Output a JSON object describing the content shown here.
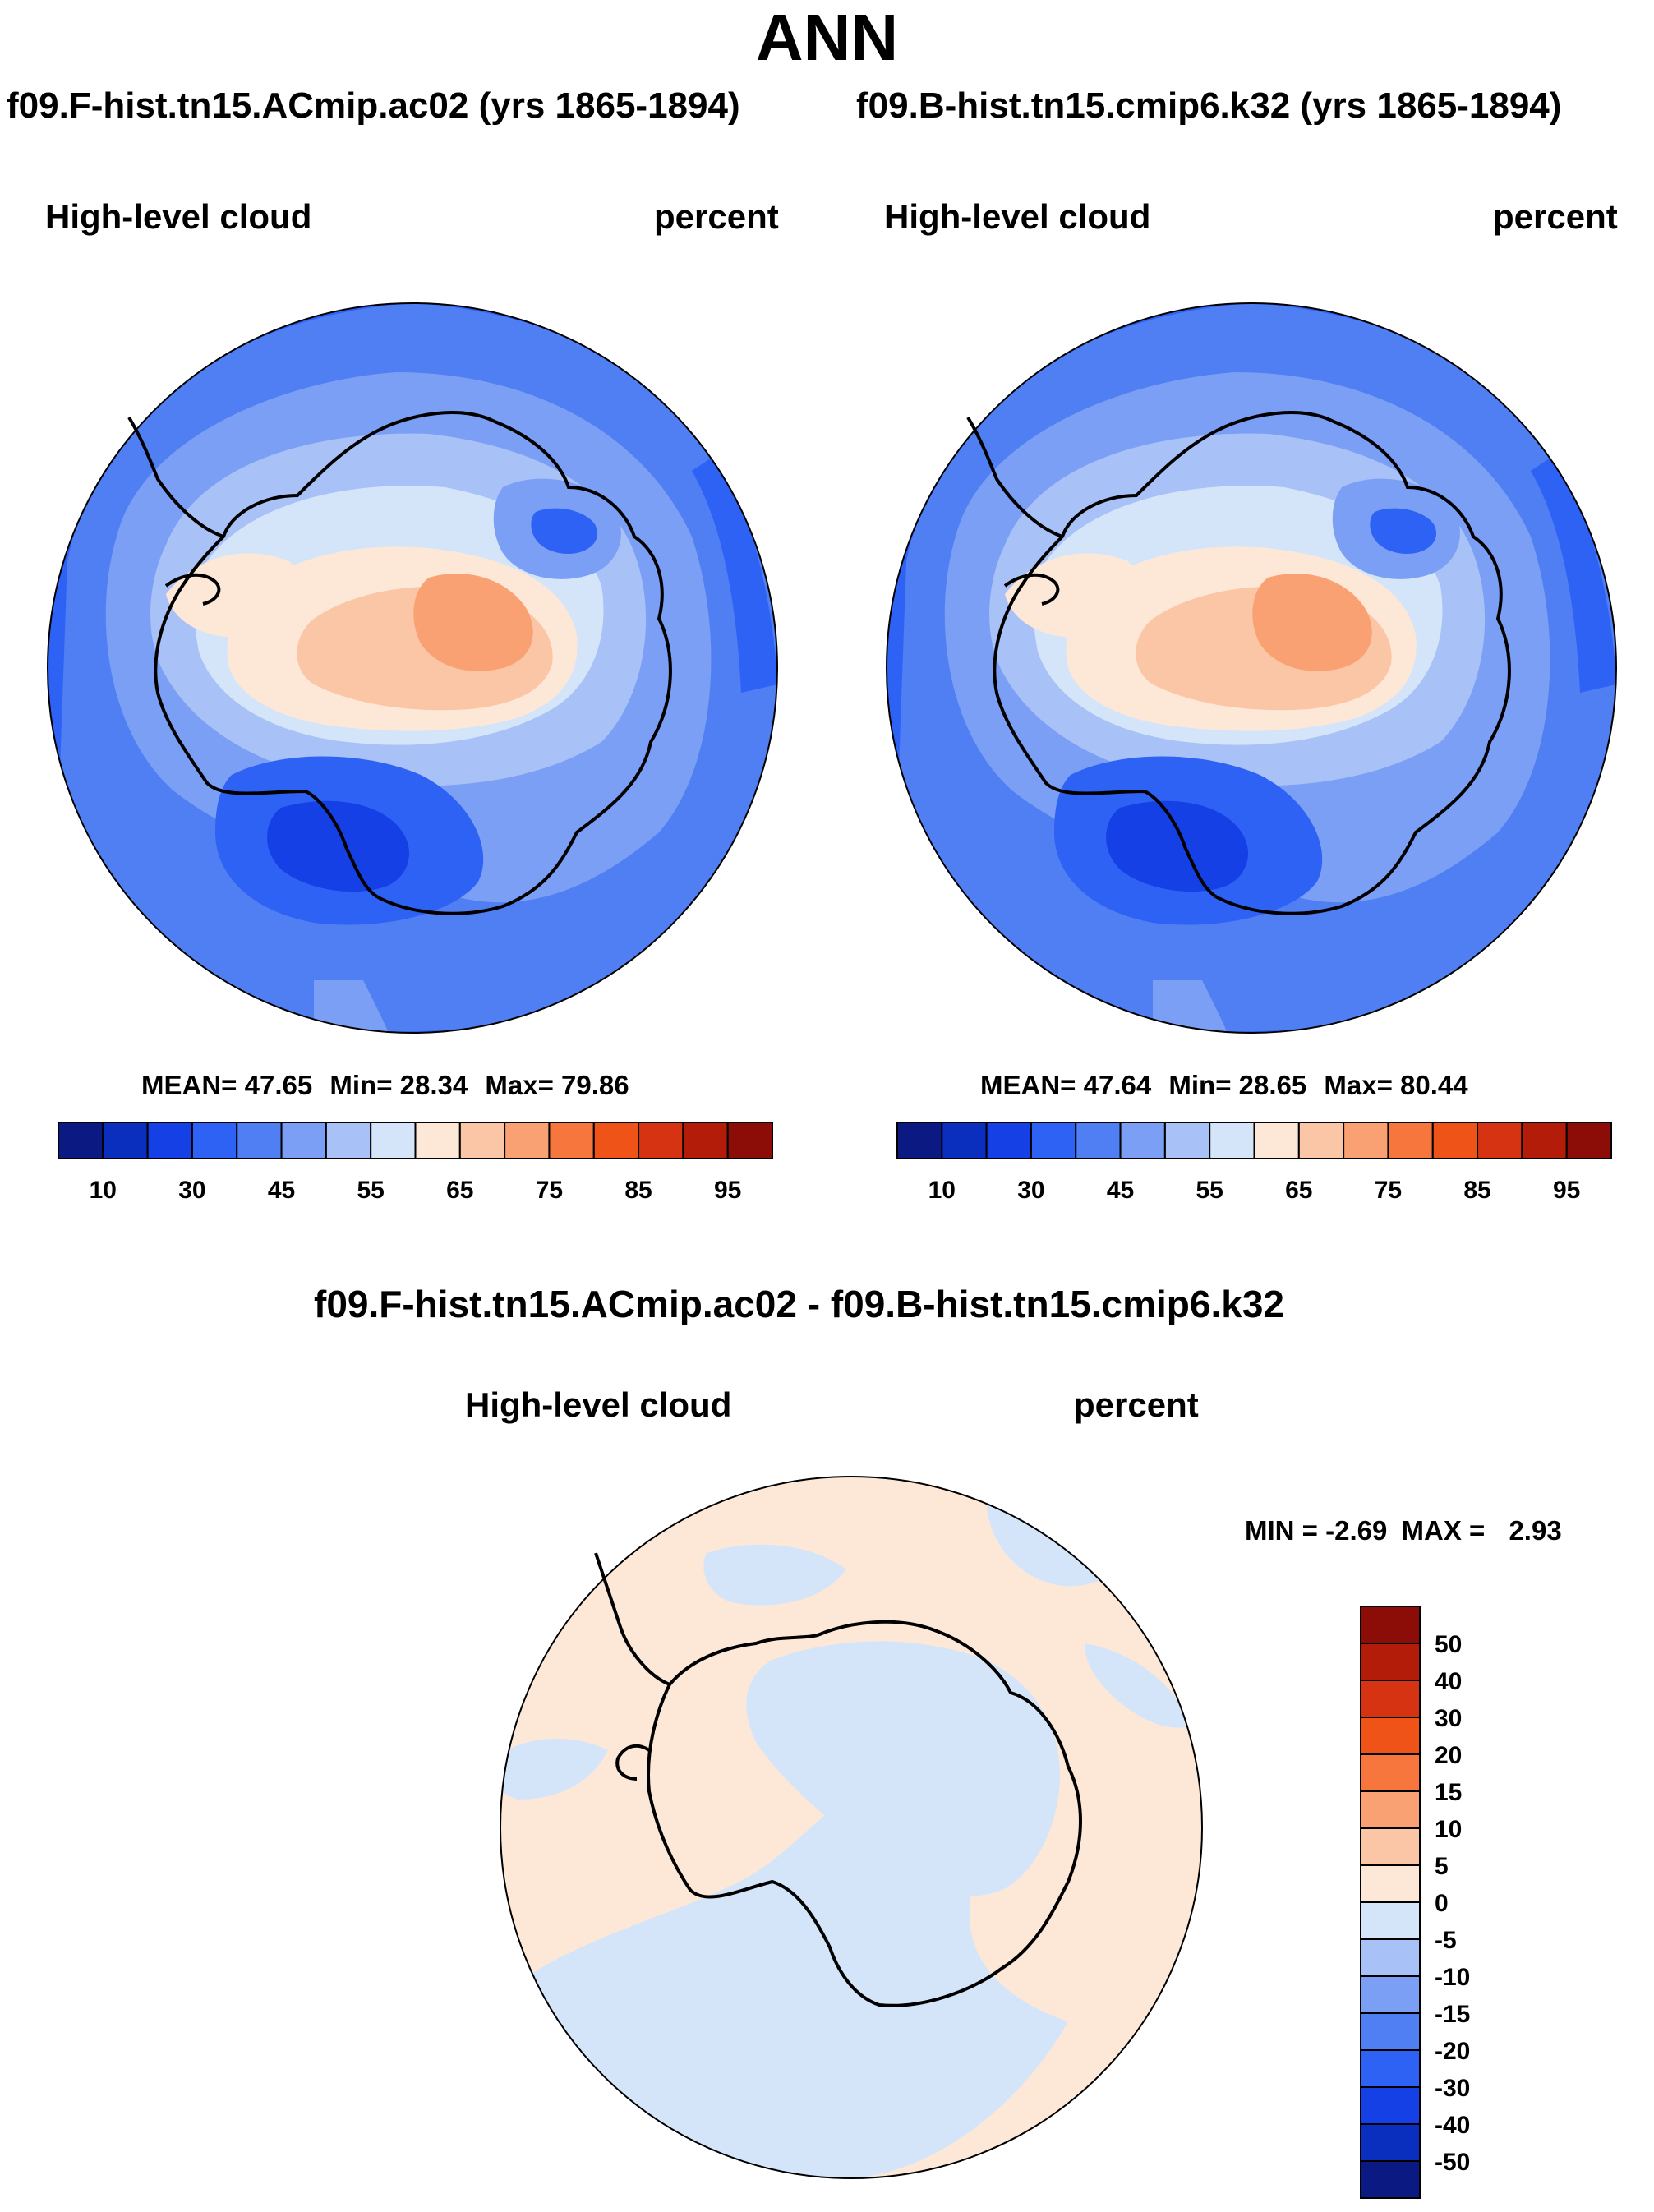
{
  "page": {
    "title": "ANN"
  },
  "panels": {
    "left": {
      "run_title": "f09.F-hist.tn15.ACmip.ac02 (yrs 1865-1894)",
      "field": "High-level cloud",
      "units": "percent",
      "mean_label": "MEAN=",
      "mean": "47.65",
      "min_label": "Min=",
      "min": "28.34",
      "max_label": "Max=",
      "max": "79.86"
    },
    "right": {
      "run_title": "f09.B-hist.tn15.cmip6.k32 (yrs 1865-1894)",
      "field": "High-level cloud",
      "units": "percent",
      "mean_label": "MEAN=",
      "mean": "47.64",
      "min_label": "Min=",
      "min": "28.65",
      "max_label": "Max=",
      "max": "80.44"
    },
    "diff": {
      "title": "f09.F-hist.tn15.ACmip.ac02 - f09.B-hist.tn15.cmip6.k32",
      "field": "High-level cloud",
      "units": "percent",
      "min_label": "MIN =",
      "min": "-2.69",
      "max_label": "MAX =",
      "max": "2.93"
    }
  },
  "chart_data": [
    {
      "type": "contour-map",
      "projection": "south-polar-stereographic",
      "title": "f09.F-hist.tn15.ACmip.ac02 (yrs 1865-1894)",
      "variable": "High-level cloud",
      "units": "percent",
      "mean": 47.65,
      "min": 28.34,
      "max": 79.86,
      "levels": [
        10,
        20,
        30,
        40,
        45,
        50,
        55,
        60,
        65,
        70,
        75,
        80,
        85,
        90,
        95
      ],
      "tick_labels": [
        "10",
        "30",
        "45",
        "55",
        "65",
        "75",
        "85",
        "95"
      ],
      "colors": [
        "#0a1a82",
        "#0a2fbe",
        "#1440e6",
        "#2e62f5",
        "#4f7ff2",
        "#7b9ff4",
        "#a8c1f7",
        "#d4e5fa",
        "#fde8d8",
        "#fbc6a6",
        "#f9a172",
        "#f7763e",
        "#f05318",
        "#d63313",
        "#b41c0a",
        "#8c0c08"
      ]
    },
    {
      "type": "contour-map",
      "projection": "south-polar-stereographic",
      "title": "f09.B-hist.tn15.cmip6.k32 (yrs 1865-1894)",
      "variable": "High-level cloud",
      "units": "percent",
      "mean": 47.64,
      "min": 28.65,
      "max": 80.44,
      "levels": [
        10,
        20,
        30,
        40,
        45,
        50,
        55,
        60,
        65,
        70,
        75,
        80,
        85,
        90,
        95
      ],
      "tick_labels": [
        "10",
        "30",
        "45",
        "55",
        "65",
        "75",
        "85",
        "95"
      ],
      "colors": [
        "#0a1a82",
        "#0a2fbe",
        "#1440e6",
        "#2e62f5",
        "#4f7ff2",
        "#7b9ff4",
        "#a8c1f7",
        "#d4e5fa",
        "#fde8d8",
        "#fbc6a6",
        "#f9a172",
        "#f7763e",
        "#f05318",
        "#d63313",
        "#b41c0a",
        "#8c0c08"
      ]
    },
    {
      "type": "contour-map",
      "projection": "south-polar-stereographic",
      "title": "f09.F-hist.tn15.ACmip.ac02 - f09.B-hist.tn15.cmip6.k32",
      "variable": "High-level cloud",
      "units": "percent",
      "min": -2.69,
      "max": 2.93,
      "levels": [
        -50,
        -40,
        -30,
        -20,
        -15,
        -10,
        -5,
        0,
        5,
        10,
        15,
        20,
        30,
        40,
        50
      ],
      "tick_labels": [
        "50",
        "40",
        "30",
        "20",
        "15",
        "10",
        "5",
        "0",
        "-5",
        "-10",
        "-15",
        "-20",
        "-30",
        "-40",
        "-50"
      ],
      "colors": [
        "#8c0c08",
        "#b41c0a",
        "#d63313",
        "#f05318",
        "#f7763e",
        "#f9a172",
        "#fbc6a6",
        "#fde8d8",
        "#d4e5fa",
        "#a8c1f7",
        "#7b9ff4",
        "#4f7ff2",
        "#2e62f5",
        "#1440e6",
        "#0a2fbe",
        "#0a1a82"
      ]
    }
  ]
}
